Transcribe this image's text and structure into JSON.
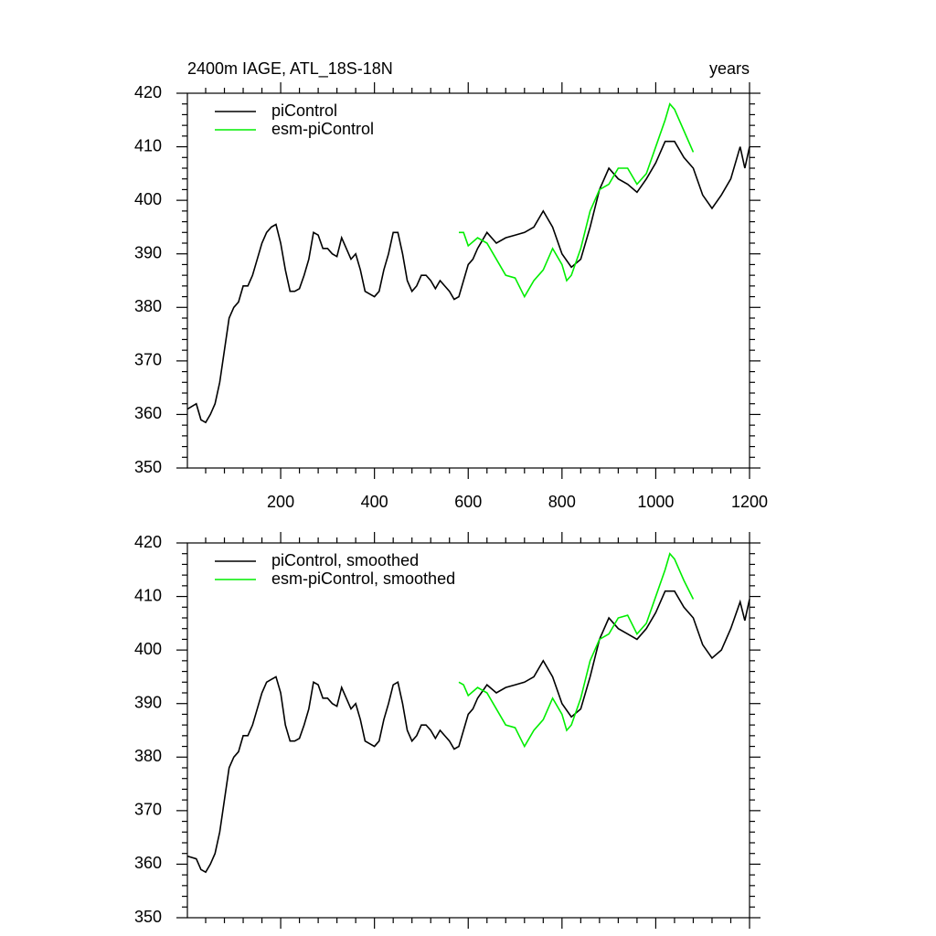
{
  "chart_data": [
    {
      "type": "line",
      "title": "2400m IAGE, ATL_18S-18N",
      "subtitle": "years",
      "xlim": [
        1,
        1200
      ],
      "xticks": [
        200,
        400,
        600,
        800,
        1000,
        1200
      ],
      "ylim": [
        350,
        420
      ],
      "yticks": [
        350,
        360,
        370,
        380,
        390,
        400,
        410,
        420
      ],
      "legend": "upper left",
      "series": [
        {
          "name": "piControl",
          "color": "#000000",
          "x": [
            1,
            20,
            30,
            40,
            50,
            60,
            70,
            80,
            90,
            100,
            110,
            120,
            130,
            140,
            150,
            160,
            170,
            180,
            190,
            200,
            210,
            220,
            230,
            240,
            250,
            260,
            270,
            280,
            290,
            300,
            310,
            320,
            330,
            340,
            350,
            360,
            370,
            380,
            390,
            400,
            410,
            420,
            430,
            440,
            450,
            460,
            470,
            480,
            490,
            500,
            510,
            520,
            530,
            540,
            550,
            560,
            570,
            580,
            590,
            600,
            610,
            620,
            640,
            660,
            680,
            700,
            720,
            740,
            760,
            780,
            800,
            820,
            840,
            860,
            880,
            900,
            920,
            940,
            960,
            980,
            1000,
            1020,
            1040,
            1060,
            1080,
            1100,
            1120,
            1140,
            1160,
            1180,
            1190,
            1200
          ],
          "values": [
            361,
            362,
            359,
            358.5,
            360,
            362,
            366,
            372,
            378,
            380,
            381,
            384,
            384,
            386,
            389,
            392,
            394,
            395,
            395.5,
            392,
            387,
            383,
            383,
            383.5,
            386,
            389,
            394,
            393.5,
            391,
            391,
            390,
            389.5,
            393,
            391,
            389,
            390,
            387,
            383,
            382.5,
            382,
            383,
            387,
            390,
            394,
            394,
            390,
            385,
            383,
            384,
            386,
            386,
            385,
            383.5,
            385,
            384,
            383,
            381.5,
            382,
            385,
            388,
            389,
            391,
            394,
            392,
            393,
            393.5,
            394,
            395,
            398,
            395,
            390,
            387.5,
            389,
            395,
            402,
            406,
            404,
            403,
            401.5,
            404,
            407,
            411,
            411,
            408,
            406,
            401,
            398.5,
            401,
            404,
            410,
            406,
            410
          ]
        },
        {
          "name": "esm-piControl",
          "color": "#00ee00",
          "x": [
            580,
            590,
            600,
            620,
            640,
            660,
            680,
            700,
            720,
            740,
            760,
            780,
            800,
            810,
            820,
            840,
            860,
            880,
            900,
            920,
            940,
            960,
            980,
            1000,
            1020,
            1030,
            1040,
            1060,
            1080
          ],
          "values": [
            394,
            394,
            391.5,
            393,
            392,
            389,
            386,
            385.5,
            382,
            385,
            387,
            391,
            388,
            385,
            386,
            391,
            398,
            402,
            403,
            406,
            406,
            403,
            405,
            410,
            415,
            418,
            417,
            413,
            409
          ]
        }
      ]
    },
    {
      "type": "line",
      "xlim": [
        1,
        1200
      ],
      "ylim": [
        350,
        420
      ],
      "yticks": [
        350,
        360,
        370,
        380,
        390,
        400,
        410,
        420
      ],
      "legend": "upper left",
      "series": [
        {
          "name": "piControl, smoothed",
          "color": "#000000",
          "x": [
            1,
            20,
            30,
            40,
            50,
            60,
            70,
            80,
            90,
            100,
            110,
            120,
            130,
            140,
            150,
            160,
            170,
            180,
            190,
            200,
            210,
            220,
            230,
            240,
            250,
            260,
            270,
            280,
            290,
            300,
            310,
            320,
            330,
            340,
            350,
            360,
            370,
            380,
            390,
            400,
            410,
            420,
            430,
            440,
            450,
            460,
            470,
            480,
            490,
            500,
            510,
            520,
            530,
            540,
            550,
            560,
            570,
            580,
            590,
            600,
            610,
            620,
            640,
            660,
            680,
            700,
            720,
            740,
            760,
            780,
            800,
            820,
            840,
            860,
            880,
            900,
            920,
            940,
            960,
            980,
            1000,
            1020,
            1040,
            1060,
            1080,
            1100,
            1120,
            1140,
            1160,
            1180,
            1190,
            1200
          ],
          "values": [
            361.5,
            361,
            359,
            358.5,
            360,
            362,
            366,
            372,
            378,
            380,
            381,
            384,
            384,
            386,
            389,
            392,
            394,
            394.5,
            395,
            392,
            386,
            383,
            383,
            383.5,
            386,
            389,
            394,
            393.5,
            391,
            391,
            390,
            389.5,
            393,
            391,
            389,
            390,
            387,
            383,
            382.5,
            382,
            383,
            387,
            390,
            393.5,
            394,
            390,
            385,
            383,
            384,
            386,
            386,
            385,
            383.5,
            385,
            384,
            383,
            381.5,
            382,
            385,
            388,
            389,
            391,
            393.5,
            392,
            393,
            393.5,
            394,
            395,
            398,
            395,
            390,
            387.5,
            389,
            395,
            402,
            406,
            404,
            403,
            402,
            404,
            407,
            411,
            411,
            408,
            406,
            401,
            398.5,
            400,
            404,
            409,
            405.5,
            409.5
          ]
        },
        {
          "name": "esm-piControl, smoothed",
          "color": "#00ee00",
          "x": [
            580,
            590,
            600,
            620,
            640,
            660,
            680,
            700,
            720,
            740,
            760,
            780,
            800,
            810,
            820,
            840,
            860,
            880,
            900,
            920,
            940,
            960,
            980,
            1000,
            1020,
            1030,
            1040,
            1060,
            1080
          ],
          "values": [
            394,
            393.5,
            391.5,
            393,
            392,
            389,
            386,
            385.5,
            382,
            385,
            387,
            391,
            388,
            385,
            386,
            391,
            398,
            402,
            403,
            406,
            406.5,
            403,
            405,
            410,
            415,
            418,
            417,
            413,
            409.5
          ]
        }
      ]
    }
  ]
}
